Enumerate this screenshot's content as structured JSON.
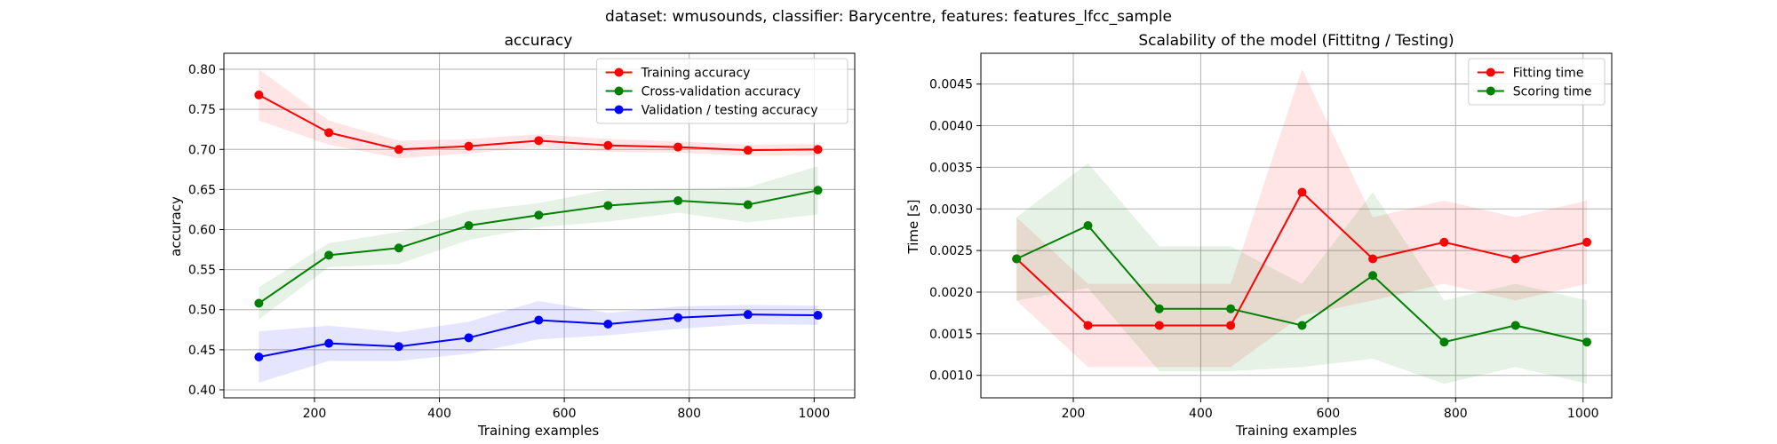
{
  "suptitle": "dataset: wmusounds, classifier: Barycentre, features: features_lfcc_sample",
  "chart_data": [
    {
      "type": "line",
      "title": "accuracy",
      "xlabel": "Training examples",
      "ylabel": "accuracy",
      "xlim": [
        55,
        1065
      ],
      "ylim": [
        0.39,
        0.82
      ],
      "xticks": [
        200,
        400,
        600,
        800,
        1000
      ],
      "yticks": [
        0.4,
        0.45,
        0.5,
        0.55,
        0.6,
        0.65,
        0.7,
        0.75,
        0.8
      ],
      "ytick_labels": [
        "0.40",
        "0.45",
        "0.50",
        "0.55",
        "0.60",
        "0.65",
        "0.70",
        "0.75",
        "0.80"
      ],
      "grid": true,
      "legend_position": "top-right",
      "x": [
        111,
        223,
        335,
        447,
        559,
        670,
        782,
        894,
        1006
      ],
      "series": [
        {
          "name": "Training accuracy",
          "color": "#ff0000",
          "band_color": "#ff0000",
          "values": [
            0.768,
            0.721,
            0.7,
            0.704,
            0.711,
            0.705,
            0.703,
            0.699,
            0.7
          ],
          "band": [
            0.032,
            0.015,
            0.011,
            0.009,
            0.008,
            0.008,
            0.007,
            0.007,
            0.007
          ]
        },
        {
          "name": "Cross-validation accuracy",
          "color": "#008000",
          "band_color": "#008000",
          "values": [
            0.508,
            0.568,
            0.577,
            0.605,
            0.618,
            0.63,
            0.636,
            0.631,
            0.649
          ],
          "band": [
            0.02,
            0.015,
            0.02,
            0.018,
            0.015,
            0.02,
            0.015,
            0.022,
            0.03
          ]
        },
        {
          "name": "Validation / testing accuracy",
          "color": "#0000ff",
          "band_color": "#0000ff",
          "values": [
            0.441,
            0.458,
            0.454,
            0.465,
            0.487,
            0.482,
            0.49,
            0.494,
            0.493
          ],
          "band": [
            0.032,
            0.022,
            0.018,
            0.02,
            0.024,
            0.014,
            0.014,
            0.012,
            0.012
          ]
        }
      ]
    },
    {
      "type": "line",
      "title": "Scalability of the model (Fittitng / Testing)",
      "xlabel": "Training examples",
      "ylabel": "Time [s]",
      "xlim": [
        55,
        1045
      ],
      "ylim": [
        0.00073,
        0.00487
      ],
      "xticks": [
        200,
        400,
        600,
        800,
        1000
      ],
      "yticks": [
        0.001,
        0.0015,
        0.002,
        0.0025,
        0.003,
        0.0035,
        0.004,
        0.0045
      ],
      "ytick_labels": [
        "0.0010",
        "0.0015",
        "0.0020",
        "0.0025",
        "0.0030",
        "0.0035",
        "0.0040",
        "0.0045"
      ],
      "grid": true,
      "legend_position": "top-right",
      "x": [
        111,
        223,
        335,
        447,
        559,
        670,
        782,
        894,
        1006
      ],
      "series": [
        {
          "name": "Fitting time",
          "color": "#ff0000",
          "band_color": "#ff0000",
          "values": [
            0.0024,
            0.0016,
            0.0016,
            0.0016,
            0.0032,
            0.0024,
            0.0026,
            0.0024,
            0.0026
          ],
          "band": [
            0.0005,
            0.0005,
            0.0005,
            0.0005,
            0.00148,
            0.0005,
            0.0005,
            0.0005,
            0.0005
          ]
        },
        {
          "name": "Scoring time",
          "color": "#008000",
          "band_color": "#008000",
          "values": [
            0.0024,
            0.0028,
            0.0018,
            0.0018,
            0.0016,
            0.0022,
            0.0014,
            0.0016,
            0.0014
          ],
          "band": [
            0.0005,
            0.00075,
            0.00075,
            0.00075,
            0.0005,
            0.001,
            0.0005,
            0.0005,
            0.0005
          ]
        }
      ]
    }
  ]
}
